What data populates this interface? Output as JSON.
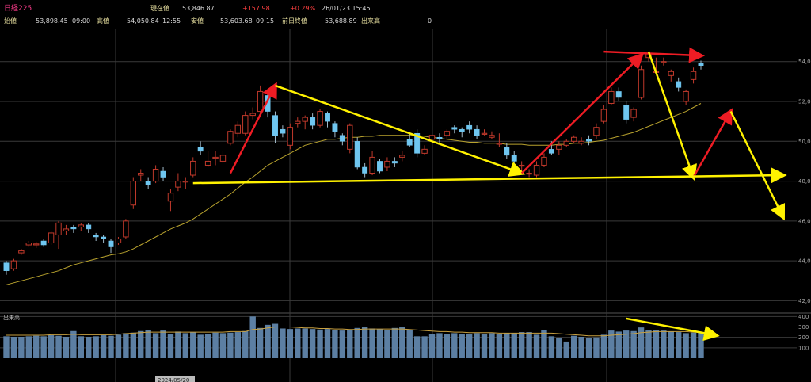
{
  "header": {
    "title": "日経225",
    "current_label": "現在値",
    "current_value": "53,846.87",
    "change": "+157.98",
    "change_pct": "+0.29%",
    "datetime": "26/01/23 15:45",
    "open_label": "始値",
    "open_value": "53,898.45",
    "open_time": "09:00",
    "high_label": "高値",
    "high_value": "54,050.84",
    "high_time": "12:55",
    "low_label": "安値",
    "low_value": "53,603.68",
    "low_time": "09:15",
    "prev_label": "前日終値",
    "prev_value": "53,688.89",
    "volume_label": "出来高",
    "volume_value": "0"
  },
  "colors": {
    "background": "#000000",
    "up_candle": "#c0392b",
    "down_candle": "#6fc6f0",
    "moving_average": "#b9a32e",
    "volume_bar": "#5c7fa3",
    "annotation_red": "#ee1c24",
    "annotation_yellow": "#fff200"
  },
  "chart_data": {
    "type": "candlestick",
    "price_axis": {
      "tick_labels": [
        "54,0",
        "52,0",
        "50,0",
        "48,0",
        "46,0",
        "44,0",
        "42,0"
      ],
      "ticks": [
        54000,
        52000,
        50000,
        48000,
        46000,
        44000,
        42000
      ],
      "range": [
        41500,
        55500
      ]
    },
    "candles": [
      [
        43900,
        43500,
        44000,
        43300
      ],
      [
        43600,
        44000,
        44100,
        43500
      ],
      [
        44400,
        44500,
        44600,
        44300
      ],
      [
        44800,
        44900,
        45000,
        44700
      ],
      [
        44800,
        44850,
        44950,
        44650
      ],
      [
        45000,
        44800,
        45100,
        44700
      ],
      [
        44900,
        45400,
        45500,
        44800
      ],
      [
        45300,
        45900,
        46000,
        44600
      ],
      [
        45500,
        45600,
        45800,
        45300
      ],
      [
        45700,
        45600,
        45800,
        45400
      ],
      [
        45700,
        45800,
        45900,
        45500
      ],
      [
        45800,
        45600,
        45900,
        45400
      ],
      [
        45300,
        45200,
        45400,
        45000
      ],
      [
        45200,
        45100,
        45300,
        44900
      ],
      [
        45000,
        44700,
        45100,
        44400
      ],
      [
        44900,
        45100,
        45200,
        44800
      ],
      [
        45200,
        46000,
        46100,
        45100
      ],
      [
        46800,
        48000,
        48200,
        46600
      ],
      [
        48300,
        48400,
        48600,
        48000
      ],
      [
        48000,
        47800,
        48200,
        47600
      ],
      [
        48000,
        48600,
        48800,
        47900
      ],
      [
        48500,
        48200,
        48700,
        48000
      ],
      [
        47000,
        47400,
        47600,
        46500
      ],
      [
        47700,
        48000,
        48400,
        47500
      ],
      [
        48000,
        48000,
        48200,
        47600
      ],
      [
        48300,
        49000,
        49200,
        48200
      ],
      [
        49700,
        49500,
        50000,
        49300
      ],
      [
        48800,
        49000,
        49500,
        48700
      ],
      [
        49200,
        49200,
        49500,
        48800
      ],
      [
        49000,
        49300,
        49500,
        48900
      ],
      [
        49900,
        50500,
        50600,
        49800
      ],
      [
        50400,
        50800,
        51000,
        50200
      ],
      [
        50400,
        51300,
        51500,
        50300
      ],
      [
        51300,
        51400,
        51700,
        51100
      ],
      [
        51500,
        52500,
        52800,
        51300
      ],
      [
        52300,
        51500,
        52400,
        51200
      ],
      [
        51300,
        50300,
        51500,
        49900
      ],
      [
        50600,
        50400,
        50800,
        50200
      ],
      [
        49800,
        50700,
        50900,
        49600
      ],
      [
        50900,
        51000,
        51200,
        50700
      ],
      [
        51000,
        51200,
        51300,
        50600
      ],
      [
        51200,
        50800,
        51400,
        50600
      ],
      [
        50800,
        51500,
        51600,
        50700
      ],
      [
        51400,
        51000,
        51500,
        50700
      ],
      [
        50900,
        50500,
        51000,
        50200
      ],
      [
        50300,
        50000,
        50400,
        49800
      ],
      [
        49600,
        50800,
        50900,
        49400
      ],
      [
        50000,
        48700,
        50200,
        48600
      ],
      [
        48700,
        48400,
        48900,
        48200
      ],
      [
        48400,
        49200,
        49500,
        48300
      ],
      [
        49000,
        48500,
        49100,
        48400
      ],
      [
        48700,
        49000,
        49200,
        48500
      ],
      [
        49000,
        48900,
        49200,
        48700
      ],
      [
        49200,
        49300,
        49500,
        49000
      ],
      [
        50100,
        49800,
        50400,
        49700
      ],
      [
        50400,
        49400,
        50600,
        49200
      ],
      [
        49400,
        49600,
        49800,
        49300
      ],
      [
        50100,
        50300,
        50400,
        49900
      ],
      [
        50200,
        50100,
        50400,
        49900
      ],
      [
        50300,
        50500,
        50600,
        50100
      ],
      [
        50700,
        50600,
        50800,
        50400
      ],
      [
        50600,
        50500,
        50700,
        50200
      ],
      [
        50800,
        50600,
        51000,
        50400
      ],
      [
        50600,
        50300,
        50800,
        50100
      ],
      [
        50400,
        50400,
        50600,
        50300
      ],
      [
        50200,
        50300,
        50500,
        50100
      ],
      [
        49900,
        49900,
        50400,
        49700
      ],
      [
        49700,
        49300,
        49900,
        49100
      ],
      [
        49300,
        49000,
        49500,
        48700
      ],
      [
        48800,
        48800,
        49000,
        48500
      ],
      [
        48400,
        48400,
        48600,
        48200
      ],
      [
        48300,
        48800,
        49000,
        48200
      ],
      [
        48800,
        49200,
        49400,
        48700
      ],
      [
        49600,
        49400,
        50000,
        49300
      ],
      [
        49600,
        49800,
        50000,
        49300
      ],
      [
        49800,
        50000,
        50100,
        49700
      ],
      [
        50000,
        50200,
        50300,
        49900
      ],
      [
        49900,
        50000,
        50200,
        49800
      ],
      [
        50100,
        50000,
        50300,
        49800
      ],
      [
        50300,
        50700,
        50900,
        50100
      ],
      [
        51000,
        51600,
        51800,
        50900
      ],
      [
        51900,
        52500,
        52700,
        51800
      ],
      [
        52500,
        52200,
        52700,
        52000
      ],
      [
        51800,
        51100,
        52000,
        50900
      ],
      [
        51200,
        51600,
        51700,
        51000
      ],
      [
        52200,
        53600,
        53800,
        52100
      ],
      [
        54200,
        54400,
        54500,
        54000
      ],
      [
        53500,
        53500,
        54200,
        53400
      ],
      [
        54000,
        54000,
        54200,
        53800
      ],
      [
        53300,
        53500,
        53600,
        53000
      ],
      [
        53000,
        52700,
        53200,
        52500
      ],
      [
        52000,
        52500,
        52600,
        51800
      ],
      [
        53100,
        53500,
        53700,
        52900
      ],
      [
        53900,
        53800,
        54050,
        53600
      ]
    ],
    "moving_average": [
      42800,
      42900,
      43000,
      43100,
      43200,
      43300,
      43400,
      43500,
      43650,
      43800,
      43900,
      44000,
      44100,
      44200,
      44300,
      44350,
      44450,
      44600,
      44800,
      45000,
      45200,
      45400,
      45600,
      45750,
      45900,
      46100,
      46350,
      46600,
      46850,
      47100,
      47350,
      47650,
      47950,
      48200,
      48500,
      48800,
      49000,
      49200,
      49400,
      49600,
      49800,
      49900,
      50000,
      50100,
      50100,
      50150,
      50200,
      50200,
      50250,
      50250,
      50300,
      50300,
      50300,
      50300,
      50300,
      50300,
      50250,
      50200,
      50150,
      50100,
      50050,
      50000,
      49950,
      49950,
      49900,
      49900,
      49900,
      49850,
      49850,
      49850,
      49800,
      49800,
      49800,
      49800,
      49850,
      49850,
      49900,
      49900,
      49950,
      50000,
      50050,
      50150,
      50250,
      50350,
      50450,
      50600,
      50750,
      50900,
      51050,
      51200,
      51350,
      51500,
      51700,
      51900
    ],
    "volume_axis": {
      "title": "出来高",
      "tick_labels": [
        "400",
        "300",
        "200",
        "100"
      ],
      "ticks": [
        400,
        300,
        200,
        100
      ],
      "range": [
        0,
        410
      ]
    },
    "volumes": [
      210,
      205,
      205,
      210,
      215,
      210,
      220,
      215,
      205,
      260,
      210,
      205,
      210,
      220,
      215,
      225,
      240,
      245,
      260,
      270,
      240,
      265,
      235,
      255,
      240,
      250,
      225,
      230,
      245,
      240,
      245,
      250,
      260,
      400,
      290,
      320,
      330,
      285,
      280,
      285,
      285,
      280,
      275,
      280,
      270,
      265,
      270,
      290,
      300,
      285,
      280,
      270,
      290,
      300,
      270,
      210,
      210,
      230,
      240,
      235,
      240,
      230,
      230,
      240,
      235,
      240,
      230,
      240,
      240,
      250,
      250,
      225,
      270,
      210,
      190,
      160,
      215,
      205,
      195,
      200,
      225,
      265,
      255,
      265,
      260,
      295,
      270,
      270,
      265,
      255,
      250,
      240,
      245,
      250
    ],
    "volume_ma": [
      220,
      220,
      220,
      220,
      220,
      220,
      225,
      225,
      225,
      230,
      225,
      225,
      225,
      225,
      225,
      230,
      235,
      240,
      245,
      250,
      250,
      250,
      250,
      250,
      250,
      250,
      250,
      250,
      250,
      250,
      255,
      255,
      255,
      275,
      280,
      290,
      300,
      300,
      300,
      295,
      290,
      290,
      285,
      285,
      280,
      280,
      275,
      275,
      280,
      280,
      280,
      280,
      280,
      280,
      275,
      270,
      265,
      260,
      255,
      255,
      250,
      250,
      245,
      245,
      245,
      245,
      240,
      240,
      240,
      240,
      240,
      240,
      240,
      240,
      235,
      230,
      225,
      220,
      215,
      215,
      215,
      220,
      225,
      230,
      235,
      245,
      250,
      255,
      255,
      255,
      255,
      255,
      250,
      250
    ],
    "x_date_label": "2024/05/20",
    "annotations": [
      {
        "color": "red",
        "from": [
          30,
          48400
        ],
        "to": [
          36,
          52800
        ]
      },
      {
        "color": "yellow",
        "from": [
          36,
          52800
        ],
        "to": [
          69,
          48400
        ]
      },
      {
        "color": "red",
        "from": [
          69,
          48400
        ],
        "to": [
          85,
          54300
        ]
      },
      {
        "color": "red",
        "from": [
          80,
          54500
        ],
        "to": [
          93,
          54300
        ]
      },
      {
        "color": "yellow",
        "from": [
          86,
          54500
        ],
        "to": [
          92,
          48200
        ]
      },
      {
        "color": "red",
        "from": [
          92,
          48200
        ],
        "to": [
          97,
          51500
        ]
      },
      {
        "color": "yellow",
        "from": [
          97,
          51500
        ],
        "to": [
          104,
          46200
        ]
      },
      {
        "color": "yellow",
        "from": [
          25,
          47900
        ],
        "to": [
          104,
          48300
        ]
      },
      {
        "color": "yellow",
        "from": [
          83,
          380
        ],
        "to": [
          95,
          220
        ],
        "pane": "volume"
      }
    ]
  }
}
